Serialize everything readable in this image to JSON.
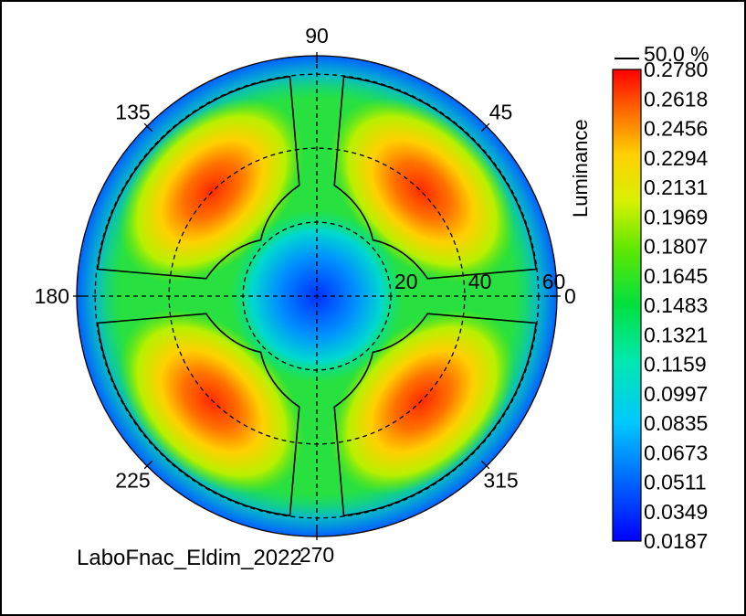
{
  "chart_data": {
    "type": "heatmap",
    "subtype": "polar-isoluminance",
    "colorbar_title": "Luminance",
    "colorbar_ticks": [
      "0.2780",
      "0.2618",
      "0.2456",
      "0.2294",
      "0.2131",
      "0.1969",
      "0.1807",
      "0.1645",
      "0.1483",
      "0.1321",
      "0.1159",
      "0.0997",
      "0.0835",
      "0.0673",
      "0.0511",
      "0.0349",
      "0.0187"
    ],
    "value_range": [
      0.0187,
      0.278
    ],
    "contour_legend": "50.0 %",
    "angle_labels": [
      "0",
      "45",
      "90",
      "135",
      "180",
      "225",
      "270",
      "315"
    ],
    "ring_labels": [
      "20",
      "40",
      "60"
    ],
    "caption": "LaboFnac_Eldim_2022",
    "grid": "dashed",
    "colormap": [
      "#0000ff",
      "#00a0ff",
      "#00e0d0",
      "#00e070",
      "#40e000",
      "#c8f000",
      "#ffe000",
      "#ff8000",
      "#ff2000"
    ]
  }
}
